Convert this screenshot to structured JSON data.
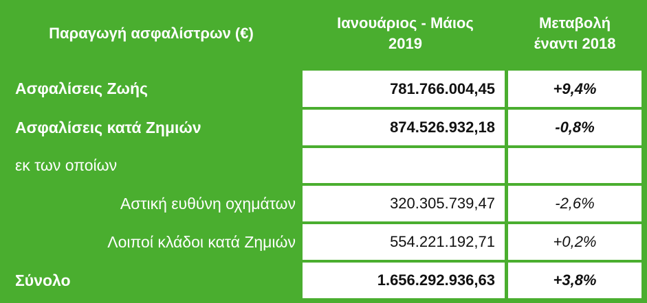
{
  "header": {
    "col1": "Παραγωγή ασφαλίστρων (€)",
    "col2_line1": "Ιανουάριος - Μάιος",
    "col2_line2": "2019",
    "col3_line1": "Μεταβολή",
    "col3_line2": "έναντι 2018"
  },
  "rows": [
    {
      "label": "Ασφαλίσεις Ζωής",
      "value": "781.766.004,45",
      "change": "+9,4%"
    },
    {
      "label": "Ασφαλίσεις κατά Ζημιών",
      "value": "874.526.932,18",
      "change": "-0,8%"
    },
    {
      "label": "εκ των οποίων",
      "value": "",
      "change": ""
    },
    {
      "label": "Αστική ευθύνη οχημάτων",
      "value": "320.305.739,47",
      "change": "-2,6%"
    },
    {
      "label": "Λοιποί κλάδοι κατά Ζημιών",
      "value": "554.221.192,71",
      "change": "+0,2%"
    },
    {
      "label": "Σύνολο",
      "value": "1.656.292.936,63",
      "change": "+3,8%"
    }
  ],
  "colors": {
    "header_bg": "#4aae2f",
    "cell_bg": "#ffffff"
  }
}
